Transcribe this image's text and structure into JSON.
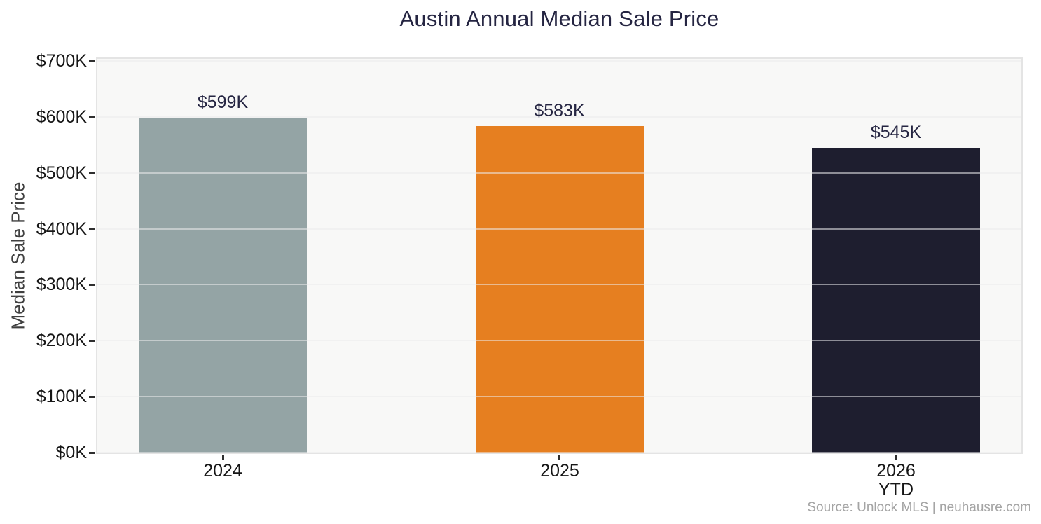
{
  "title": "Austin Annual Median Sale Price",
  "source_credit": "Source: Unlock MLS | neuhausre.com",
  "chart_data": {
    "type": "bar",
    "title": "Austin Annual Median Sale Price",
    "ylabel": "Median Sale Price",
    "xlabel": "",
    "categories": [
      "2024",
      "2025",
      "2026"
    ],
    "category_sublabels": [
      "",
      "",
      "YTD"
    ],
    "values": [
      599,
      583,
      545
    ],
    "value_labels": [
      "$599K",
      "$583K",
      "$545K"
    ],
    "bar_colors": [
      "#94a4a5",
      "#e67f20",
      "#1e1e2f"
    ],
    "ylim": [
      0,
      700
    ],
    "yticks": [
      0,
      100,
      200,
      300,
      400,
      500,
      600,
      700
    ],
    "ytick_labels": [
      "$0K",
      "$100K",
      "$200K",
      "$300K",
      "$400K",
      "$500K",
      "$600K",
      "$700K"
    ],
    "grid": true,
    "legend": false,
    "source": "Source: Unlock MLS | neuhausre.com"
  },
  "colors": {
    "title_text": "#252542",
    "value_label_text": "#252542",
    "tick_text": "#161616",
    "axis_label_text": "#404040",
    "source_text": "#a4a4a4",
    "plot_background": "#f8f8f7",
    "plot_border": "#e4e4e4",
    "gridline": "rgba(235,235,237,0.55)",
    "tick_mark": "#2f2f2f"
  }
}
